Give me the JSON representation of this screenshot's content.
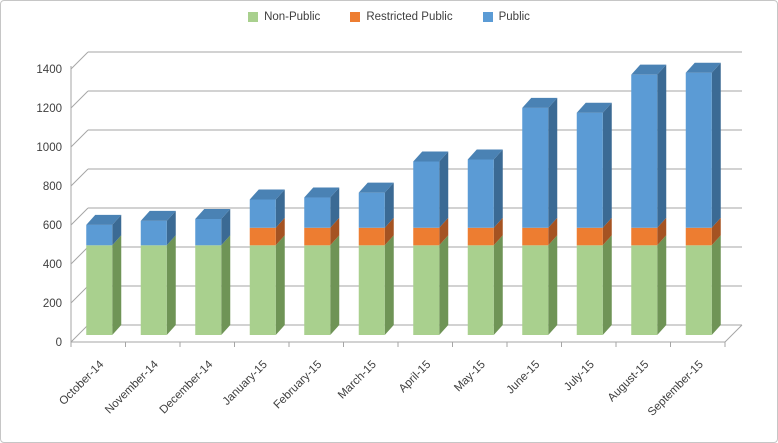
{
  "chart_data": {
    "type": "bar",
    "variant": "3d-stacked-column",
    "title": "",
    "xlabel": "",
    "ylabel": "",
    "categories": [
      "October-14",
      "November-14",
      "December-14",
      "January-15",
      "February-15",
      "March-15",
      "April-15",
      "May-15",
      "June-15",
      "July-15",
      "August-15",
      "September-15"
    ],
    "series": [
      {
        "name": "Non-Public",
        "color": "#a9d08e",
        "side_color": "#6f9456",
        "top_color": "#8cb873",
        "values": [
          460,
          460,
          460,
          460,
          460,
          460,
          460,
          460,
          460,
          460,
          460,
          460
        ]
      },
      {
        "name": "Restricted Public",
        "color": "#ed7d31",
        "side_color": "#a55322",
        "top_color": "#c96828",
        "values": [
          0,
          0,
          0,
          90,
          90,
          90,
          90,
          90,
          90,
          90,
          90,
          90
        ]
      },
      {
        "name": "Public",
        "color": "#5b9bd5",
        "side_color": "#3b6a94",
        "top_color": "#4a82b4",
        "values": [
          105,
          125,
          135,
          145,
          155,
          180,
          340,
          350,
          615,
          590,
          785,
          795
        ]
      }
    ],
    "stacked_totals": [
      565,
      585,
      595,
      695,
      705,
      730,
      890,
      900,
      1165,
      1140,
      1335,
      1345
    ],
    "ylim": [
      0,
      1400
    ],
    "yticks": [
      0,
      200,
      400,
      600,
      800,
      1000,
      1200,
      1400
    ],
    "legend_position": "top",
    "grid": true,
    "gridline_color": "#a6a6a6",
    "axis_color": "#a6a6a6",
    "label_color": "#3f3f3f"
  }
}
